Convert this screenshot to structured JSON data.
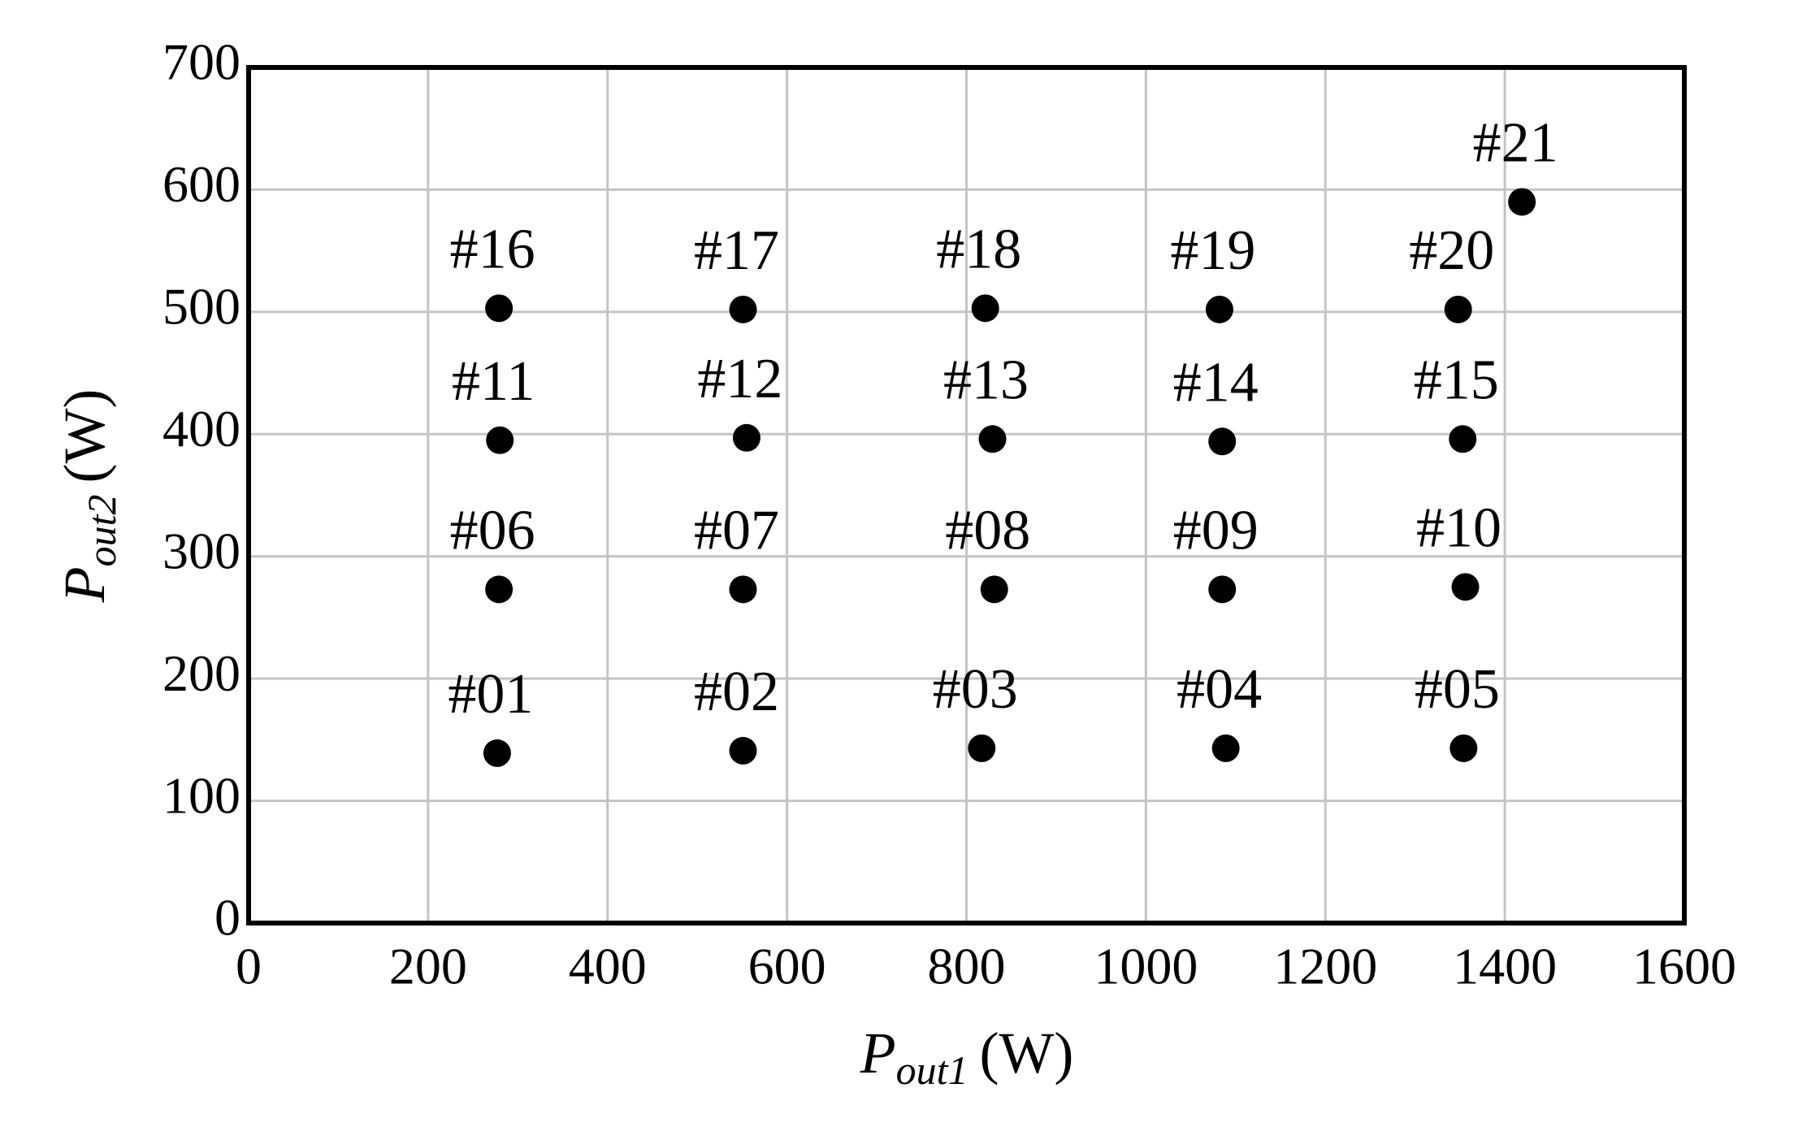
{
  "chart_data": {
    "type": "scatter",
    "x": [
      277,
      551,
      817,
      1089,
      1354,
      279,
      551,
      831,
      1085,
      1356,
      280,
      555,
      829,
      1085,
      1353,
      279,
      551,
      821,
      1082,
      1348,
      1419
    ],
    "values": [
      139,
      141,
      143,
      143,
      143,
      273,
      273,
      273,
      273,
      275,
      395,
      397,
      396,
      394,
      396,
      503,
      502,
      503,
      502,
      502,
      590
    ],
    "point_labels": [
      "#01",
      "#02",
      "#03",
      "#04",
      "#05",
      "#06",
      "#07",
      "#08",
      "#09",
      "#10",
      "#11",
      "#12",
      "#13",
      "#14",
      "#15",
      "#16",
      "#17",
      "#18",
      "#19",
      "#20",
      "#21"
    ],
    "color": "#000000",
    "xlim": [
      0,
      1600
    ],
    "xticks": [
      0,
      200,
      400,
      600,
      800,
      1000,
      1200,
      1400,
      1600
    ],
    "ylim": [
      0,
      700
    ],
    "yticks": [
      0,
      100,
      200,
      300,
      400,
      500,
      600,
      700
    ],
    "grid": true,
    "xlabel": {
      "symbol": "P",
      "subscript": "out1",
      "unit": "(W)"
    },
    "ylabel": {
      "symbol": "P",
      "subscript": "out2",
      "unit": "(W)"
    }
  }
}
